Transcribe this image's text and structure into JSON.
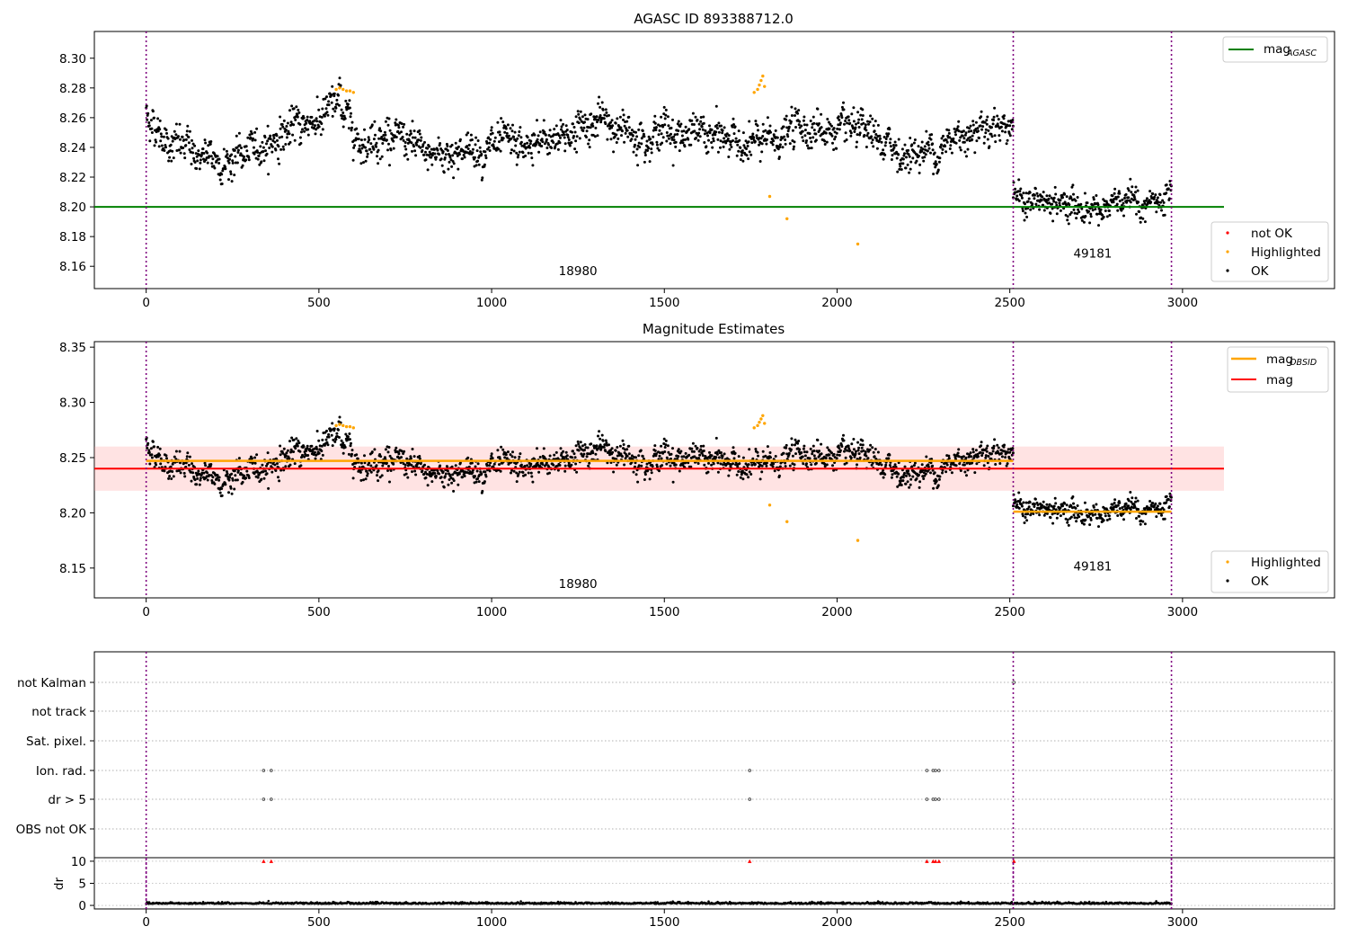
{
  "chart_data": [
    {
      "type": "scatter",
      "title": "AGASC ID 893388712.0",
      "xlim": [
        -150,
        3440
      ],
      "ylim": [
        8.145,
        8.318
      ],
      "xticks": [
        "0",
        "500",
        "1000",
        "1500",
        "2000",
        "2500",
        "3000"
      ],
      "xtick_values": [
        0,
        500,
        1000,
        1500,
        2000,
        2500,
        3000
      ],
      "yticks": [
        "8.16",
        "8.18",
        "8.20",
        "8.22",
        "8.24",
        "8.26",
        "8.28",
        "8.30"
      ],
      "ytick_values": [
        8.16,
        8.18,
        8.2,
        8.22,
        8.24,
        8.26,
        8.28,
        8.3
      ],
      "obs_boundaries": [
        0,
        2510,
        2968
      ],
      "obsid_labels": [
        {
          "text": "18980",
          "x": 1250,
          "y": 8.154
        },
        {
          "text": "49181",
          "x": 2740,
          "y": 8.166
        }
      ],
      "lines": [
        {
          "name": "mag_AGASC",
          "y": 8.2,
          "x": [
            -150,
            3120
          ],
          "color": "#008000"
        }
      ],
      "legend_top": {
        "placement": "upper-right",
        "entries": [
          {
            "label": "mag",
            "sub": "AGASC",
            "color": "#008000"
          }
        ]
      },
      "legend_bottom": {
        "placement": "lower-right",
        "entries": [
          {
            "label": "not OK",
            "color": "#ff0000"
          },
          {
            "label": "Highlighted",
            "color": "#ffa500"
          },
          {
            "label": "OK",
            "color": "#000000"
          }
        ]
      },
      "segments": [
        {
          "obsid": "18980",
          "x": [
            0,
            2510
          ],
          "trend": [
            [
              0,
              8.262
            ],
            [
              60,
              8.245
            ],
            [
              200,
              8.23
            ],
            [
              300,
              8.236
            ],
            [
              400,
              8.25
            ],
            [
              500,
              8.26
            ],
            [
              560,
              8.27
            ],
            [
              620,
              8.245
            ],
            [
              700,
              8.25
            ],
            [
              800,
              8.235
            ],
            [
              900,
              8.238
            ],
            [
              1000,
              8.24
            ],
            [
              1100,
              8.238
            ],
            [
              1200,
              8.248
            ],
            [
              1300,
              8.258
            ],
            [
              1400,
              8.25
            ],
            [
              1500,
              8.252
            ],
            [
              1600,
              8.248
            ],
            [
              1700,
              8.245
            ],
            [
              1800,
              8.242
            ],
            [
              1900,
              8.255
            ],
            [
              2000,
              8.25
            ],
            [
              2100,
              8.245
            ],
            [
              2200,
              8.235
            ],
            [
              2300,
              8.24
            ],
            [
              2400,
              8.255
            ],
            [
              2510,
              8.258
            ]
          ],
          "scatter": 0.012
        },
        {
          "obsid": "49181",
          "x": [
            2510,
            2968
          ],
          "trend": [
            [
              2510,
              8.206
            ],
            [
              2600,
              8.201
            ],
            [
              2700,
              8.2
            ],
            [
              2800,
              8.2
            ],
            [
              2968,
              8.203
            ]
          ],
          "scatter": 0.009
        }
      ],
      "highlighted": [
        [
          550,
          8.279
        ],
        [
          560,
          8.28
        ],
        [
          570,
          8.279
        ],
        [
          580,
          8.278
        ],
        [
          590,
          8.278
        ],
        [
          600,
          8.277
        ],
        [
          1760,
          8.277
        ],
        [
          1770,
          8.279
        ],
        [
          1775,
          8.282
        ],
        [
          1780,
          8.285
        ],
        [
          1785,
          8.288
        ],
        [
          1790,
          8.281
        ],
        [
          1805,
          8.207
        ],
        [
          1855,
          8.192
        ],
        [
          2060,
          8.175
        ]
      ]
    },
    {
      "type": "scatter",
      "title": "Magnitude Estimates",
      "xlim": [
        -150,
        3440
      ],
      "ylim": [
        8.123,
        8.355
      ],
      "xticks": [
        "0",
        "500",
        "1000",
        "1500",
        "2000",
        "2500",
        "3000"
      ],
      "xtick_values": [
        0,
        500,
        1000,
        1500,
        2000,
        2500,
        3000
      ],
      "yticks": [
        "8.15",
        "8.20",
        "8.25",
        "8.30",
        "8.35"
      ],
      "ytick_values": [
        8.15,
        8.2,
        8.25,
        8.3,
        8.35
      ],
      "obs_boundaries": [
        0,
        2510,
        2968
      ],
      "obsid_labels": [
        {
          "text": "18980",
          "x": 1250,
          "y": 8.132
        },
        {
          "text": "49181",
          "x": 2740,
          "y": 8.148
        }
      ],
      "band": {
        "y": [
          8.22,
          8.26
        ],
        "x": [
          -150,
          3120
        ],
        "color": "#ff9999"
      },
      "lines": [
        {
          "name": "mag",
          "y": 8.24,
          "x": [
            -150,
            3120
          ],
          "color": "#ff0000"
        },
        {
          "name": "mag_OBSID 18980",
          "y": 8.247,
          "x": [
            0,
            2510
          ],
          "color": "#ffa500"
        },
        {
          "name": "mag_OBSID 49181",
          "y": 8.201,
          "x": [
            2510,
            2968
          ],
          "color": "#ffa500"
        }
      ],
      "legend_top": {
        "placement": "upper-right",
        "entries": [
          {
            "label": "mag",
            "sub": "OBSID",
            "color": "#ffa500"
          },
          {
            "label": "mag",
            "sub": "",
            "color": "#ff0000"
          }
        ]
      },
      "legend_bottom": {
        "placement": "lower-right",
        "entries": [
          {
            "label": "Highlighted",
            "color": "#ffa500"
          },
          {
            "label": "OK",
            "color": "#000000"
          }
        ]
      }
    },
    {
      "type": "scatter",
      "title": "",
      "xlim": [
        -150,
        3440
      ],
      "xticks": [
        "0",
        "500",
        "1000",
        "1500",
        "2000",
        "2500",
        "3000"
      ],
      "xtick_values": [
        0,
        500,
        1000,
        1500,
        2000,
        2500,
        3000
      ],
      "obs_boundaries": [
        0,
        2510,
        2968
      ],
      "flag_rows": [
        "not Kalman",
        "not track",
        "Sat. pixel.",
        "Ion. rad.",
        "dr > 5",
        "OBS not OK"
      ],
      "flag_points": {
        "Ion. rad.": [
          340,
          362,
          1747,
          2260,
          2278,
          2285,
          2295
        ],
        "dr > 5": [
          340,
          362,
          1747,
          2260,
          2278,
          2285,
          2295
        ],
        "not Kalman": [
          2512
        ]
      },
      "dr": {
        "ylabel": "dr",
        "ylim": [
          -0.8,
          10.8
        ],
        "yticks": [
          "0",
          "5",
          "10"
        ],
        "ytick_values": [
          0,
          5,
          10
        ],
        "clipped_x": [
          340,
          362,
          1747,
          2260,
          2278,
          2285,
          2295,
          2512
        ],
        "clipped_y": 10,
        "baseline": 0.35,
        "x": [
          0,
          2968
        ]
      }
    }
  ]
}
